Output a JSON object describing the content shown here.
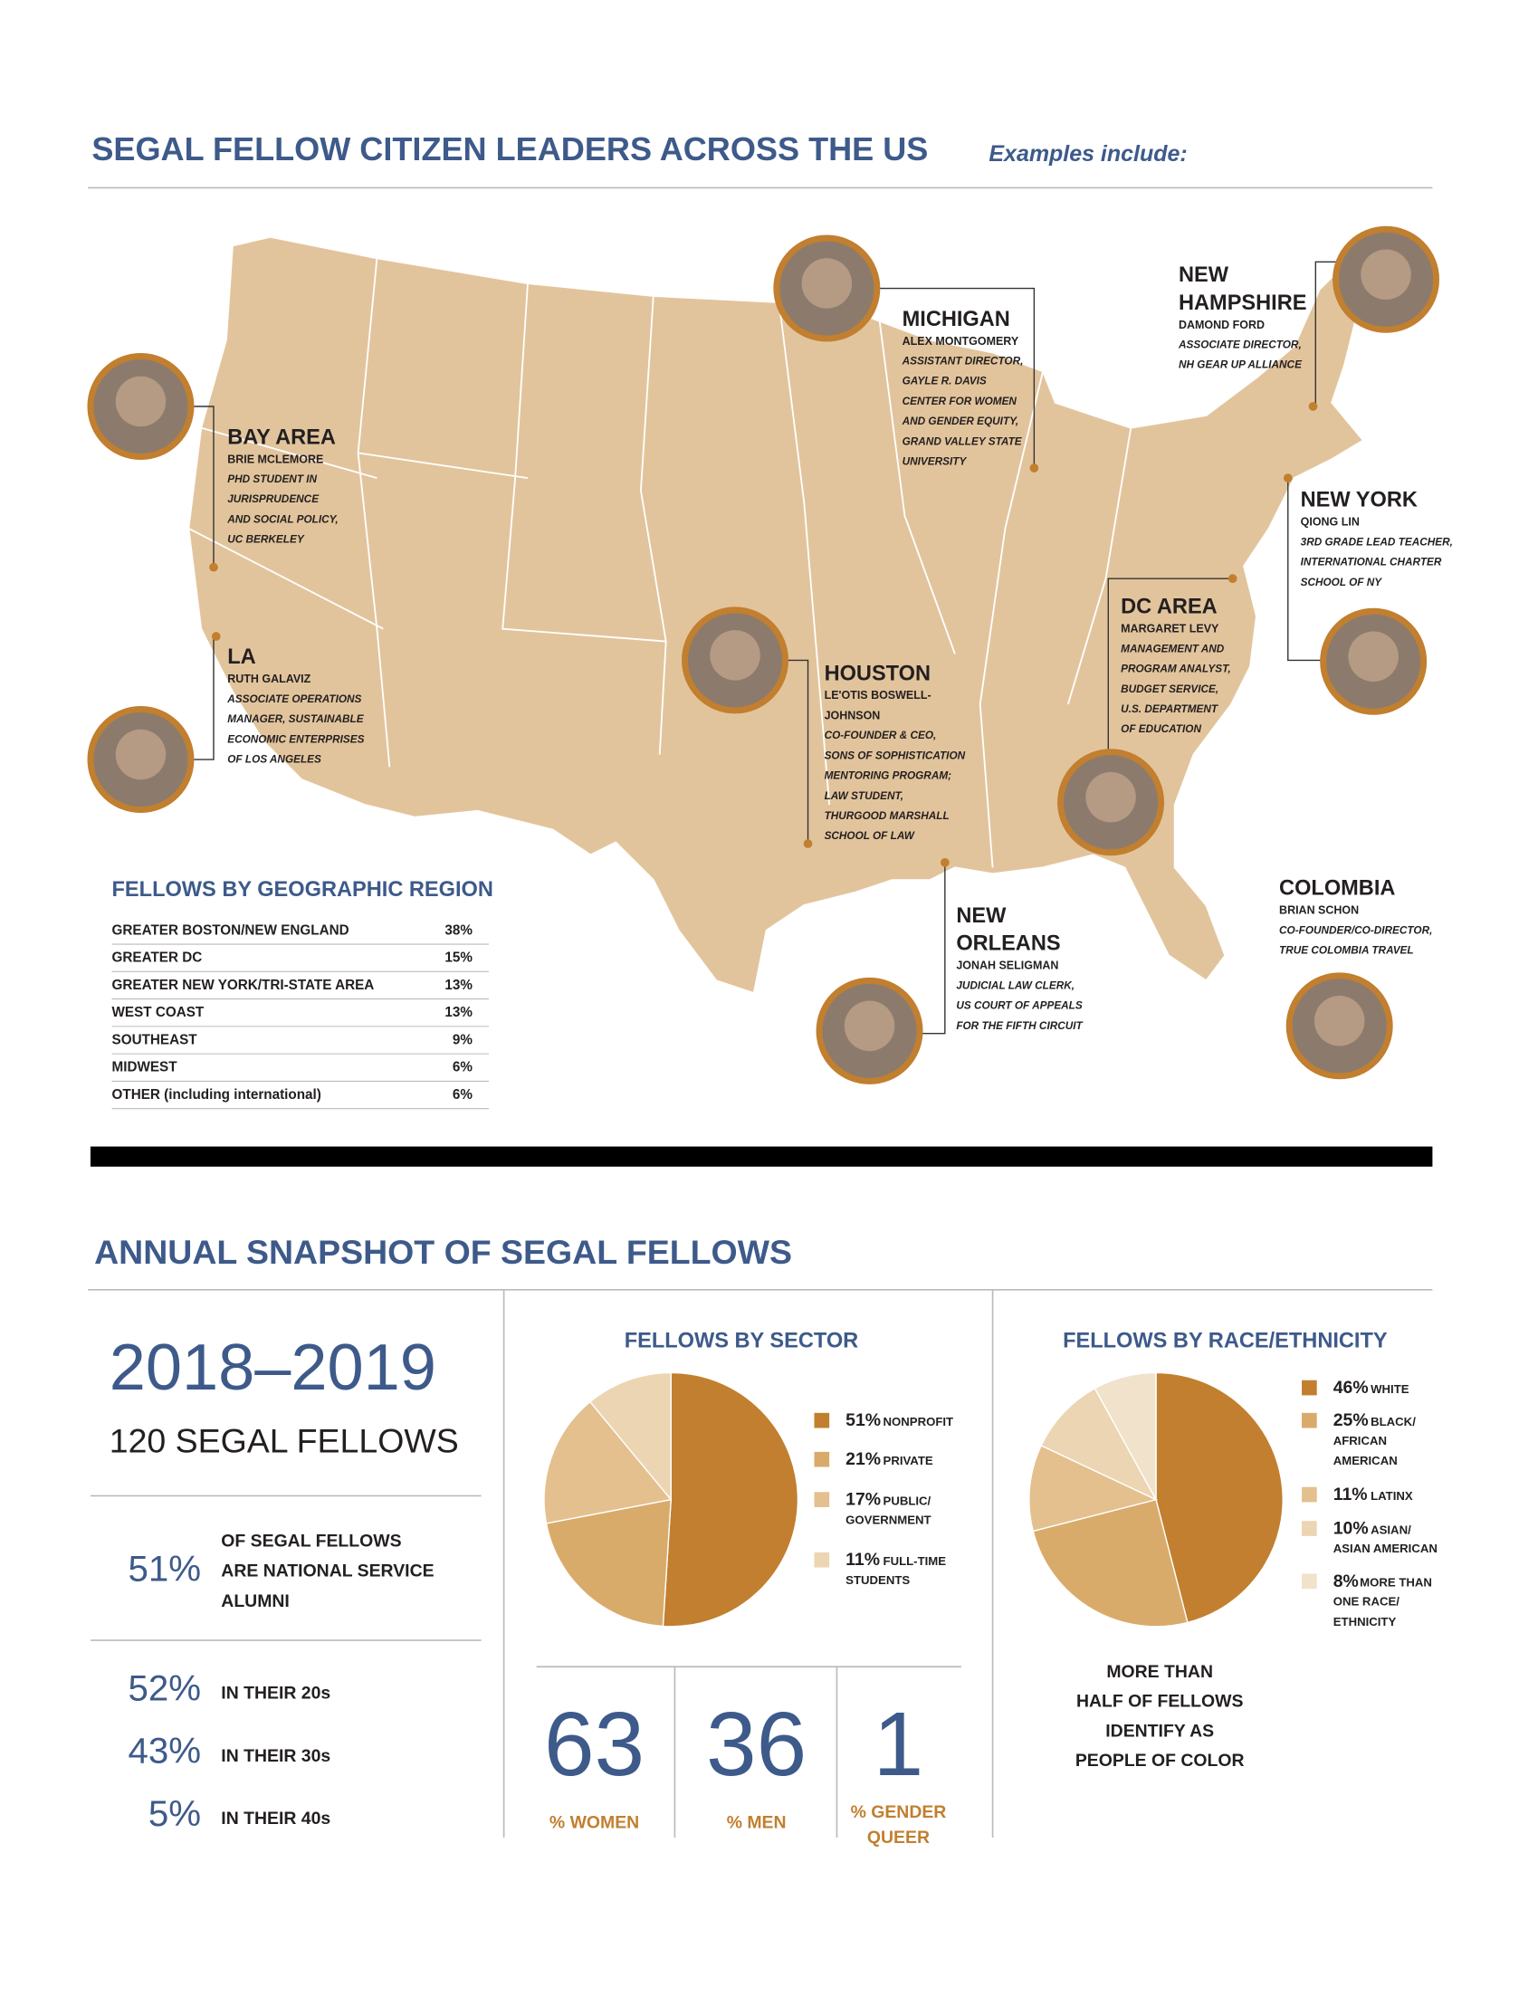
{
  "header": {
    "title": "SEGAL FELLOW CITIZEN LEADERS ACROSS THE US",
    "subtitle": "Examples include:"
  },
  "leaders": [
    {
      "region": [
        "MICHIGAN"
      ],
      "name": [
        "ALEX MONTGOMERY"
      ],
      "role": [
        "ASSISTANT DIRECTOR,",
        "GAYLE R. DAVIS",
        "CENTER FOR WOMEN",
        "AND GENDER EQUITY,",
        "GRAND VALLEY STATE",
        "UNIVERSITY"
      ]
    },
    {
      "region": [
        "NEW",
        "HAMPSHIRE"
      ],
      "name": [
        "DAMOND FORD"
      ],
      "role": [
        "ASSOCIATE DIRECTOR,",
        "NH GEAR UP ALLIANCE"
      ]
    },
    {
      "region": [
        "BAY AREA"
      ],
      "name": [
        "BRIE MCLEMORE"
      ],
      "role": [
        "PHD STUDENT IN",
        "JURISPRUDENCE",
        "AND SOCIAL POLICY,",
        "UC BERKELEY"
      ]
    },
    {
      "region": [
        "LA"
      ],
      "name": [
        "RUTH GALAVIZ"
      ],
      "role": [
        "ASSOCIATE OPERATIONS",
        "MANAGER, SUSTAINABLE",
        "ECONOMIC ENTERPRISES",
        "OF LOS ANGELES"
      ]
    },
    {
      "region": [
        "HOUSTON"
      ],
      "name": [
        "LE'OTIS BOSWELL-",
        "JOHNSON"
      ],
      "role": [
        "CO-FOUNDER & CEO,",
        "SONS OF SOPHISTICATION",
        "MENTORING PROGRAM;",
        "LAW STUDENT,",
        "THURGOOD MARSHALL",
        "SCHOOL OF LAW"
      ]
    },
    {
      "region": [
        "DC AREA"
      ],
      "name": [
        "MARGARET LEVY"
      ],
      "role": [
        "MANAGEMENT AND",
        "PROGRAM ANALYST,",
        "BUDGET SERVICE,",
        "U.S. DEPARTMENT",
        "OF EDUCATION"
      ]
    },
    {
      "region": [
        "NEW YORK"
      ],
      "name": [
        "QIONG LIN"
      ],
      "role": [
        "3RD GRADE LEAD TEACHER,",
        "INTERNATIONAL CHARTER",
        "SCHOOL OF NY"
      ]
    },
    {
      "region": [
        "NEW",
        "ORLEANS"
      ],
      "name": [
        "JONAH SELIGMAN"
      ],
      "role": [
        "JUDICIAL LAW CLERK,",
        "US COURT OF APPEALS",
        "FOR THE FIFTH CIRCUIT"
      ]
    },
    {
      "region": [
        "COLOMBIA"
      ],
      "name": [
        "BRIAN SCHON"
      ],
      "role": [
        "CO-FOUNDER/CO-DIRECTOR,",
        "TRUE COLOMBIA TRAVEL"
      ]
    }
  ],
  "region_table": {
    "title": "FELLOWS BY GEOGRAPHIC REGION",
    "rows": [
      [
        "GREATER BOSTON/NEW ENGLAND",
        "38%"
      ],
      [
        "GREATER DC",
        "15%"
      ],
      [
        "GREATER NEW YORK/TRI-STATE AREA",
        "13%"
      ],
      [
        "WEST COAST",
        "13%"
      ],
      [
        "SOUTHEAST",
        "9%"
      ],
      [
        "MIDWEST",
        "6%"
      ],
      [
        "OTHER (including international)",
        "6%"
      ]
    ]
  },
  "snapshot": {
    "title": "ANNUAL SNAPSHOT OF SEGAL FELLOWS",
    "years": "2018–2019",
    "count": "120 SEGAL FELLOWS",
    "alumni": {
      "value": "51%",
      "text": [
        "OF SEGAL FELLOWS",
        "ARE NATIONAL SERVICE",
        "ALUMNI"
      ]
    },
    "ages": [
      {
        "value": "52%",
        "label": "IN THEIR 20s"
      },
      {
        "value": "43%",
        "label": "IN THEIR 30s"
      },
      {
        "value": "5%",
        "label": "IN THEIR 40s"
      }
    ]
  },
  "sector": {
    "title": "FELLOWS BY SECTOR",
    "values": [
      51,
      21,
      17,
      11
    ],
    "value_labels": [
      "51%",
      "21%",
      "17%",
      "11%"
    ],
    "labels": [
      [
        "NONPROFIT"
      ],
      [
        "PRIVATE"
      ],
      [
        "PUBLIC/",
        "GOVERNMENT"
      ],
      [
        "FULL-TIME",
        "STUDENTS"
      ]
    ],
    "colors": [
      "#c17f2f",
      "#d9ab6a",
      "#e3c08e",
      "#ecd5b2"
    ]
  },
  "gender": [
    {
      "value": 63,
      "label": [
        "% WOMEN"
      ]
    },
    {
      "value": 36,
      "label": [
        "% MEN"
      ]
    },
    {
      "value": 1,
      "label": [
        "% GENDER",
        "QUEER"
      ]
    }
  ],
  "race": {
    "title": "FELLOWS BY RACE/ETHNICITY",
    "values": [
      46,
      25,
      11,
      10,
      8
    ],
    "value_labels": [
      "46%",
      "25%",
      "11%",
      "10%",
      "8%"
    ],
    "labels": [
      [
        "WHITE"
      ],
      [
        "BLACK/",
        "AFRICAN",
        "AMERICAN"
      ],
      [
        "LATINX"
      ],
      [
        "ASIAN/",
        "ASIAN AMERICAN"
      ],
      [
        "MORE THAN",
        "ONE RACE/",
        "ETHNICITY"
      ]
    ],
    "colors": [
      "#c17f2f",
      "#d9ab6a",
      "#e3c08e",
      "#ecd5b2",
      "#f1e2cc"
    ],
    "caption": [
      "MORE THAN",
      "HALF OF FELLOWS",
      "IDENTIFY AS",
      "PEOPLE OF COLOR"
    ]
  }
}
